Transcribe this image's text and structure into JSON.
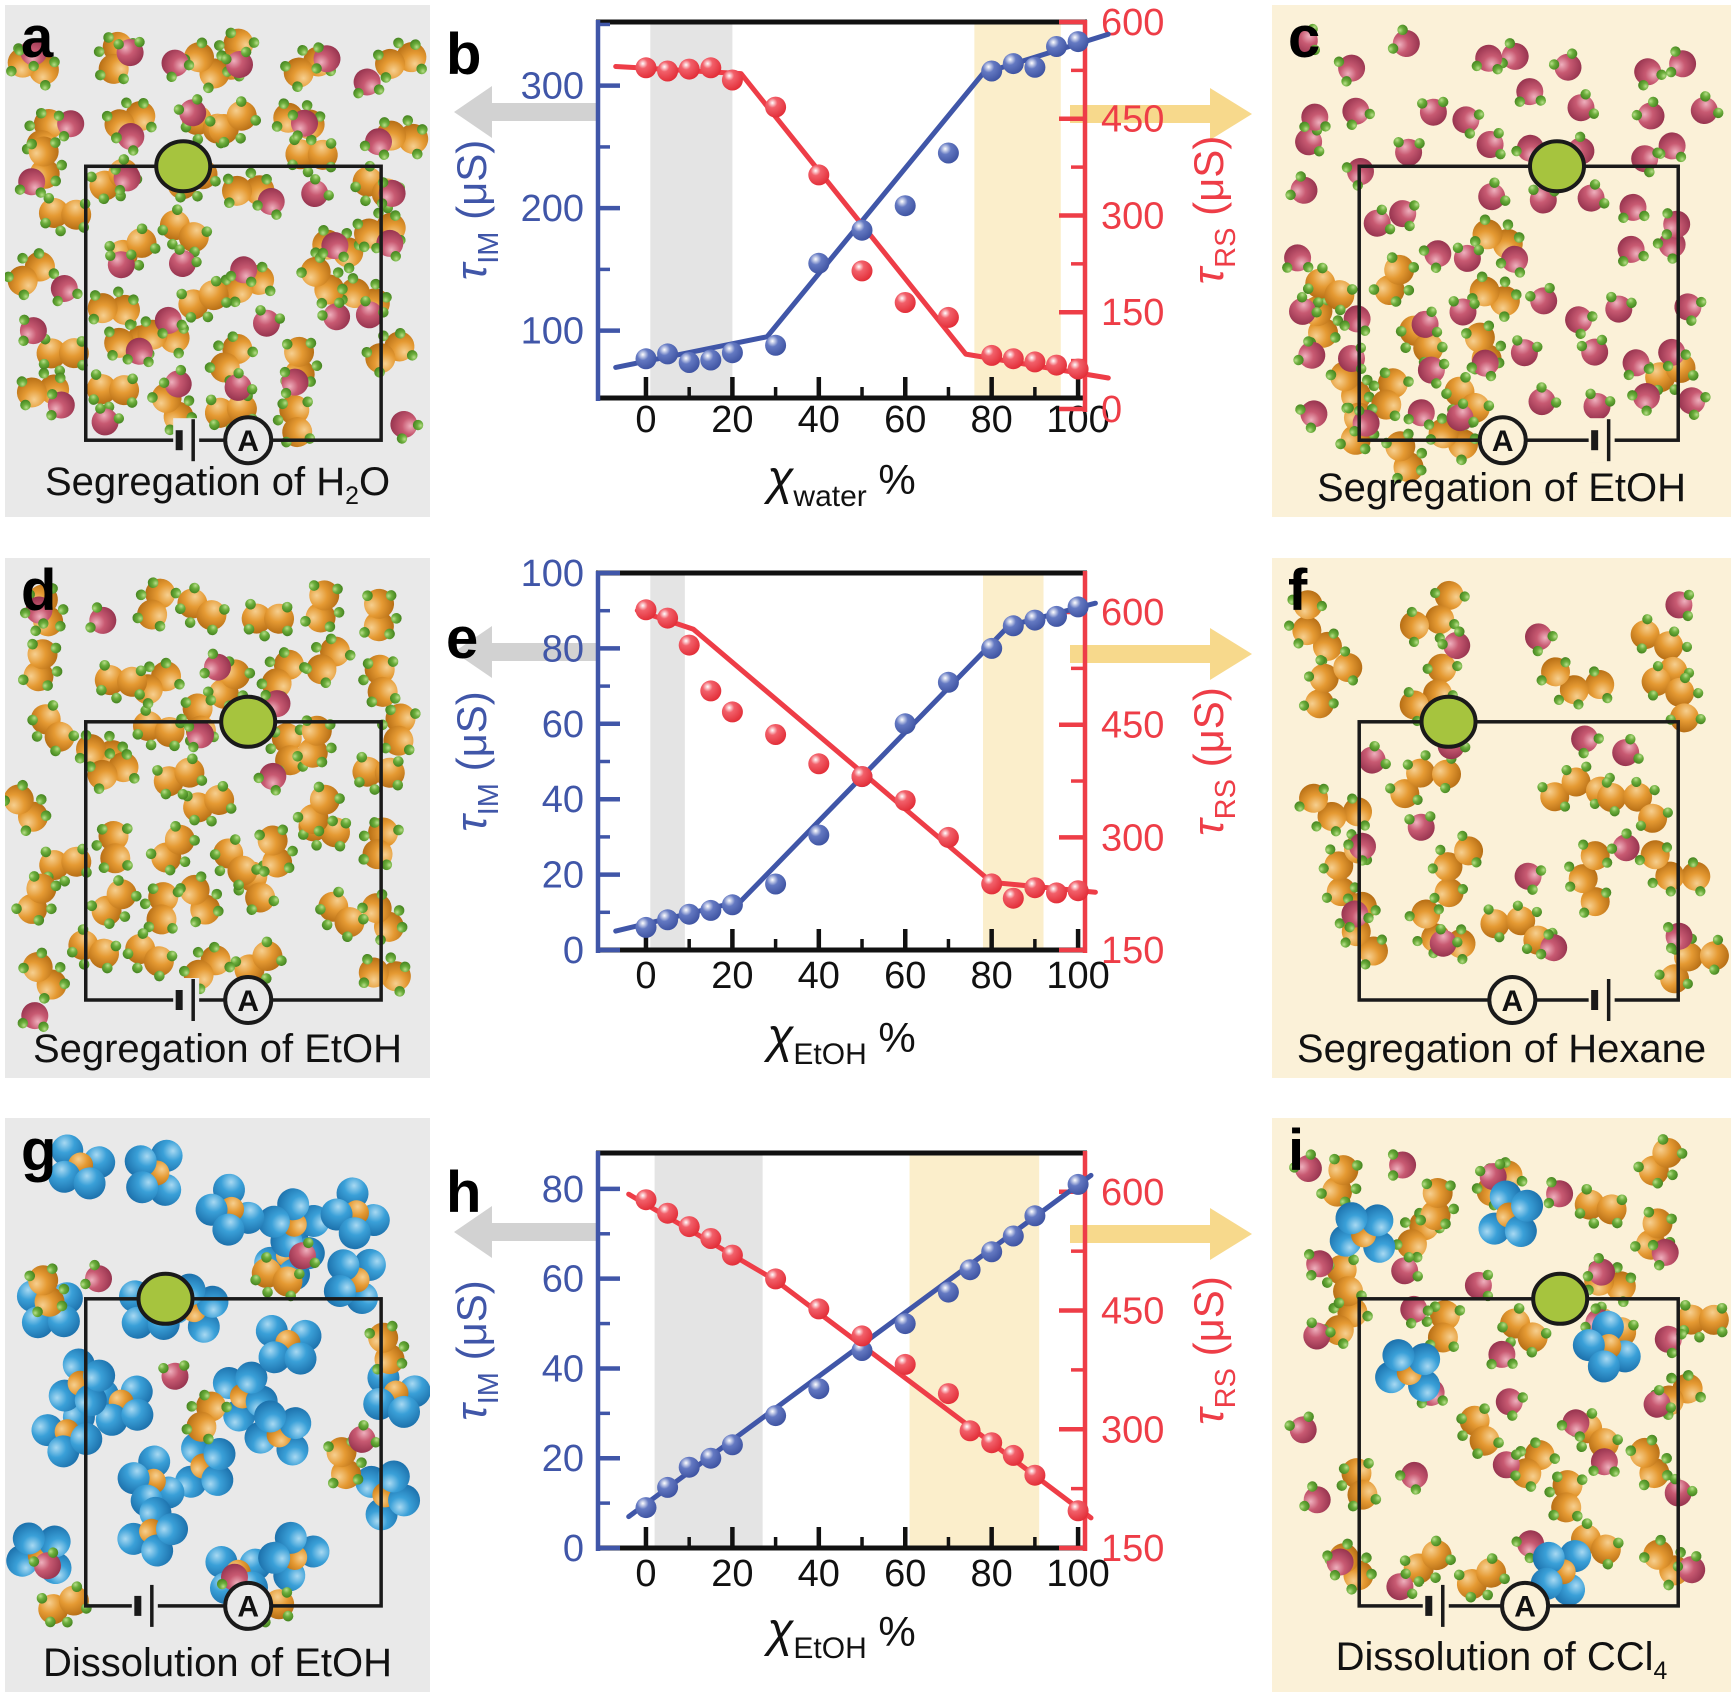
{
  "colors": {
    "blue_series": "#4056a8",
    "red_series": "#ee3d47",
    "gray_band": "#e4e4e4",
    "yellow_band": "#fbeecb",
    "gray_arrow": "#d2d2d2",
    "yellow_arrow": "#f7d98c",
    "gray_panel_bg": "#e9e9e9",
    "cream_panel_bg": "#fbf1d8",
    "pore_green": "#a6c43e",
    "frame_black": "#111111"
  },
  "icons": {
    "pore": "nanopore-icon",
    "ammeter": "ammeter-icon",
    "battery": "battery-icon",
    "left_axis_arrow": "left-arrow-icon",
    "right_axis_arrow": "right-arrow-icon"
  },
  "circuit": {
    "ammeter_label": "A"
  },
  "mol_panels": [
    {
      "id": "a",
      "letter": "a",
      "bg": "#e9e9e9",
      "seed": 11,
      "caption": [
        {
          "t": "Segregation of H"
        },
        {
          "t": "2",
          "sub": true
        },
        {
          "t": "O"
        }
      ],
      "pore_x": 0.33,
      "battery_x": 0.34,
      "ammeter_x": 0.55,
      "species": [
        {
          "type": "etoh",
          "count": 40
        },
        {
          "type": "water",
          "count": 34
        }
      ]
    },
    {
      "id": "c",
      "letter": "c",
      "bg": "#fbf1d8",
      "seed": 23,
      "caption": [
        {
          "t": "Segregation of EtOH"
        }
      ],
      "pore_x": 0.62,
      "battery_x": 0.76,
      "ammeter_x": 0.45,
      "species": [
        {
          "type": "etoh",
          "count": 13,
          "region": [
            0.06,
            0.38,
            0.52,
            0.9
          ]
        },
        {
          "type": "etoh",
          "count": 1,
          "spots": [
            [
              0.87,
              0.72
            ]
          ]
        },
        {
          "type": "water",
          "count": 62
        }
      ]
    },
    {
      "id": "d",
      "letter": "d",
      "bg": "#e9e9e9",
      "seed": 37,
      "caption": [
        {
          "t": "Segregation of EtOH"
        }
      ],
      "pore_x": 0.55,
      "battery_x": 0.34,
      "ammeter_x": 0.55,
      "species": [
        {
          "type": "etoh",
          "count": 46
        },
        {
          "type": "water",
          "count": 7,
          "spots": [
            [
              0.23,
              0.12
            ],
            [
              0.5,
              0.21
            ],
            [
              0.64,
              0.28
            ],
            [
              0.46,
              0.34
            ],
            [
              0.63,
              0.42
            ],
            [
              0.08,
              0.1
            ],
            [
              0.07,
              0.88
            ]
          ]
        }
      ]
    },
    {
      "id": "f",
      "letter": "f",
      "bg": "#fbf1d8",
      "seed": 51,
      "caption": [
        {
          "t": "Segregation of Hexane"
        }
      ],
      "pore_x": 0.28,
      "battery_x": 0.76,
      "ammeter_x": 0.48,
      "species": [
        {
          "type": "hexane",
          "count": 19
        },
        {
          "type": "water",
          "count": 15
        }
      ]
    },
    {
      "id": "g",
      "letter": "g",
      "bg": "#e9e9e9",
      "seed": 67,
      "caption": [
        {
          "t": "Dissolution of EtOH"
        }
      ],
      "pore_x": 0.27,
      "battery_x": 0.2,
      "ammeter_x": 0.55,
      "species": [
        {
          "type": "ccl4",
          "count": 24
        },
        {
          "type": "etoh",
          "count": 7,
          "spots": [
            [
              0.1,
              0.3
            ],
            [
              0.64,
              0.28
            ],
            [
              0.47,
              0.52
            ],
            [
              0.8,
              0.6
            ],
            [
              0.62,
              0.85
            ],
            [
              0.14,
              0.85
            ],
            [
              0.9,
              0.4
            ]
          ]
        },
        {
          "type": "water",
          "count": 6,
          "spots": [
            [
              0.22,
              0.28
            ],
            [
              0.7,
              0.24
            ],
            [
              0.4,
              0.45
            ],
            [
              0.84,
              0.56
            ],
            [
              0.54,
              0.8
            ],
            [
              0.1,
              0.78
            ]
          ]
        }
      ]
    },
    {
      "id": "i",
      "letter": "i",
      "bg": "#fbf1d8",
      "seed": 83,
      "caption": [
        {
          "t": "Dissolution of CCl"
        },
        {
          "t": "4",
          "sub": true
        }
      ],
      "pore_x": 0.63,
      "battery_x": 0.24,
      "ammeter_x": 0.52,
      "species": [
        {
          "type": "etoh",
          "count": 26
        },
        {
          "type": "water",
          "count": 28
        },
        {
          "type": "ccl4",
          "count": 5,
          "spots": [
            [
              0.2,
              0.2
            ],
            [
              0.52,
              0.17
            ],
            [
              0.73,
              0.4
            ],
            [
              0.3,
              0.44
            ],
            [
              0.63,
              0.79
            ]
          ]
        }
      ]
    }
  ],
  "chart_data": [
    {
      "id": "b",
      "type": "scatter",
      "letter": "b",
      "xlabel": {
        "symbol": "χ",
        "sub": "water",
        "unit": "%"
      },
      "xlim": [
        -11.1,
        101.6
      ],
      "x_major": [
        0,
        20,
        40,
        60,
        80,
        100
      ],
      "x_minor": [
        10,
        30,
        50,
        70,
        90
      ],
      "left_axis": {
        "symbol": "τ",
        "sub": "IM",
        "unit": "(μS)",
        "color": "#4056a8",
        "lim": [
          45,
          352
        ],
        "ticks": [
          100,
          200,
          300
        ],
        "minor": [
          150,
          250,
          350
        ]
      },
      "right_axis": {
        "symbol": "τ",
        "sub": "RS",
        "unit": "(μS)",
        "color": "#ee3d47",
        "lim": [
          17,
          600
        ],
        "ticks": [
          0,
          150,
          300,
          450,
          600
        ],
        "minor": [
          75,
          225,
          375,
          525
        ]
      },
      "x": [
        0,
        5,
        10,
        15,
        20,
        30,
        40,
        50,
        60,
        70,
        80,
        85,
        90,
        95,
        100
      ],
      "series": [
        {
          "name": "tau_IM",
          "axis": "left",
          "color": "#4056a8",
          "values": [
            77,
            81,
            74,
            76,
            82,
            88,
            155,
            182,
            202,
            245,
            312,
            318,
            315,
            332,
            336
          ],
          "trend": [
            [
              -7,
              70
            ],
            [
              28,
              95
            ],
            [
              78,
              310
            ],
            [
              107,
              342
            ]
          ]
        },
        {
          "name": "tau_RS",
          "axis": "right",
          "color": "#ee3d47",
          "values": [
            529,
            524,
            527,
            529,
            510,
            468,
            363,
            214,
            165,
            142,
            83,
            78,
            73,
            68,
            62
          ],
          "trend": [
            [
              -7,
              531
            ],
            [
              22,
              520
            ],
            [
              74,
              85
            ],
            [
              107,
              48
            ]
          ]
        }
      ],
      "bands": [
        {
          "x0": 1,
          "x1": 20,
          "color": "#e4e4e4"
        },
        {
          "x0": 76,
          "x1": 96,
          "color": "#fbeecb"
        }
      ]
    },
    {
      "id": "e",
      "type": "scatter",
      "letter": "e",
      "xlabel": {
        "symbol": "χ",
        "sub": "EtOH",
        "unit": "%"
      },
      "xlim": [
        -11.1,
        101.6
      ],
      "x_major": [
        0,
        20,
        40,
        60,
        80,
        100
      ],
      "x_minor": [
        10,
        30,
        50,
        70,
        90
      ],
      "left_axis": {
        "symbol": "τ",
        "sub": "IM",
        "unit": "(μS)",
        "color": "#4056a8",
        "lim": [
          0,
          100
        ],
        "ticks": [
          0,
          20,
          40,
          60,
          80,
          100
        ],
        "minor": [
          10,
          30,
          50,
          70,
          90
        ]
      },
      "right_axis": {
        "symbol": "τ",
        "sub": "RS",
        "unit": "(μS)",
        "color": "#ee3d47",
        "lim": [
          150,
          652
        ],
        "ticks": [
          150,
          300,
          450,
          600
        ],
        "minor": [
          225,
          375,
          525
        ]
      },
      "x": [
        0,
        5,
        10,
        15,
        20,
        30,
        40,
        50,
        60,
        70,
        80,
        85,
        90,
        95,
        100
      ],
      "series": [
        {
          "name": "tau_IM",
          "axis": "left",
          "color": "#4056a8",
          "values": [
            6,
            8,
            9.5,
            10.5,
            12,
            17.5,
            30.5,
            46,
            60,
            71,
            80,
            86,
            87.5,
            88.5,
            91
          ],
          "trend": [
            [
              -7,
              5
            ],
            [
              22,
              13
            ],
            [
              84,
              86
            ],
            [
              104,
              92
            ]
          ]
        },
        {
          "name": "tau_RS",
          "axis": "right",
          "color": "#ee3d47",
          "values": [
            603,
            592,
            556,
            495,
            467,
            437,
            398,
            381,
            349,
            300,
            238,
            219,
            233,
            226,
            229
          ],
          "trend": [
            [
              -2,
              602
            ],
            [
              11,
              577
            ],
            [
              80,
              240
            ],
            [
              104,
              227
            ]
          ]
        }
      ],
      "bands": [
        {
          "x0": 1,
          "x1": 9,
          "color": "#e4e4e4"
        },
        {
          "x0": 78,
          "x1": 92,
          "color": "#fbeecb"
        }
      ]
    },
    {
      "id": "h",
      "type": "scatter",
      "letter": "h",
      "xlabel": {
        "symbol": "χ",
        "sub": "EtOH",
        "unit": "%"
      },
      "xlim": [
        -11.1,
        101.6
      ],
      "x_major": [
        0,
        20,
        40,
        60,
        80,
        100
      ],
      "x_minor": [
        10,
        30,
        50,
        70,
        90
      ],
      "left_axis": {
        "symbol": "τ",
        "sub": "IM",
        "unit": "(μS)",
        "color": "#4056a8",
        "lim": [
          0,
          88
        ],
        "ticks": [
          0,
          20,
          40,
          60,
          80
        ],
        "minor": [
          10,
          30,
          50,
          70
        ]
      },
      "right_axis": {
        "symbol": "τ",
        "sub": "RS",
        "unit": "(μS)",
        "color": "#ee3d47",
        "lim": [
          150,
          649
        ],
        "ticks": [
          150,
          300,
          450,
          600
        ],
        "minor": [
          225,
          375,
          525
        ]
      },
      "x": [
        0,
        5,
        10,
        15,
        20,
        30,
        40,
        50,
        60,
        70,
        75,
        80,
        85,
        90,
        100
      ],
      "series": [
        {
          "name": "tau_IM",
          "axis": "left",
          "color": "#4056a8",
          "values": [
            9,
            13.5,
            18,
            20,
            23,
            29.5,
            35.5,
            44,
            50,
            57,
            62,
            66,
            69.5,
            74,
            81
          ],
          "trend": [
            [
              -4,
              7
            ],
            [
              103,
              83
            ]
          ]
        },
        {
          "name": "tau_RS",
          "axis": "right",
          "color": "#ee3d47",
          "values": [
            590,
            573,
            556,
            541,
            520,
            490,
            452,
            418,
            382,
            345,
            298,
            283,
            267,
            242,
            197
          ],
          "trend": [
            [
              -4,
              597
            ],
            [
              30,
              488
            ],
            [
              103,
              188
            ]
          ]
        }
      ],
      "bands": [
        {
          "x0": 2,
          "x1": 27,
          "color": "#e4e4e4"
        },
        {
          "x0": 61,
          "x1": 91,
          "color": "#fbeecb"
        }
      ]
    }
  ]
}
